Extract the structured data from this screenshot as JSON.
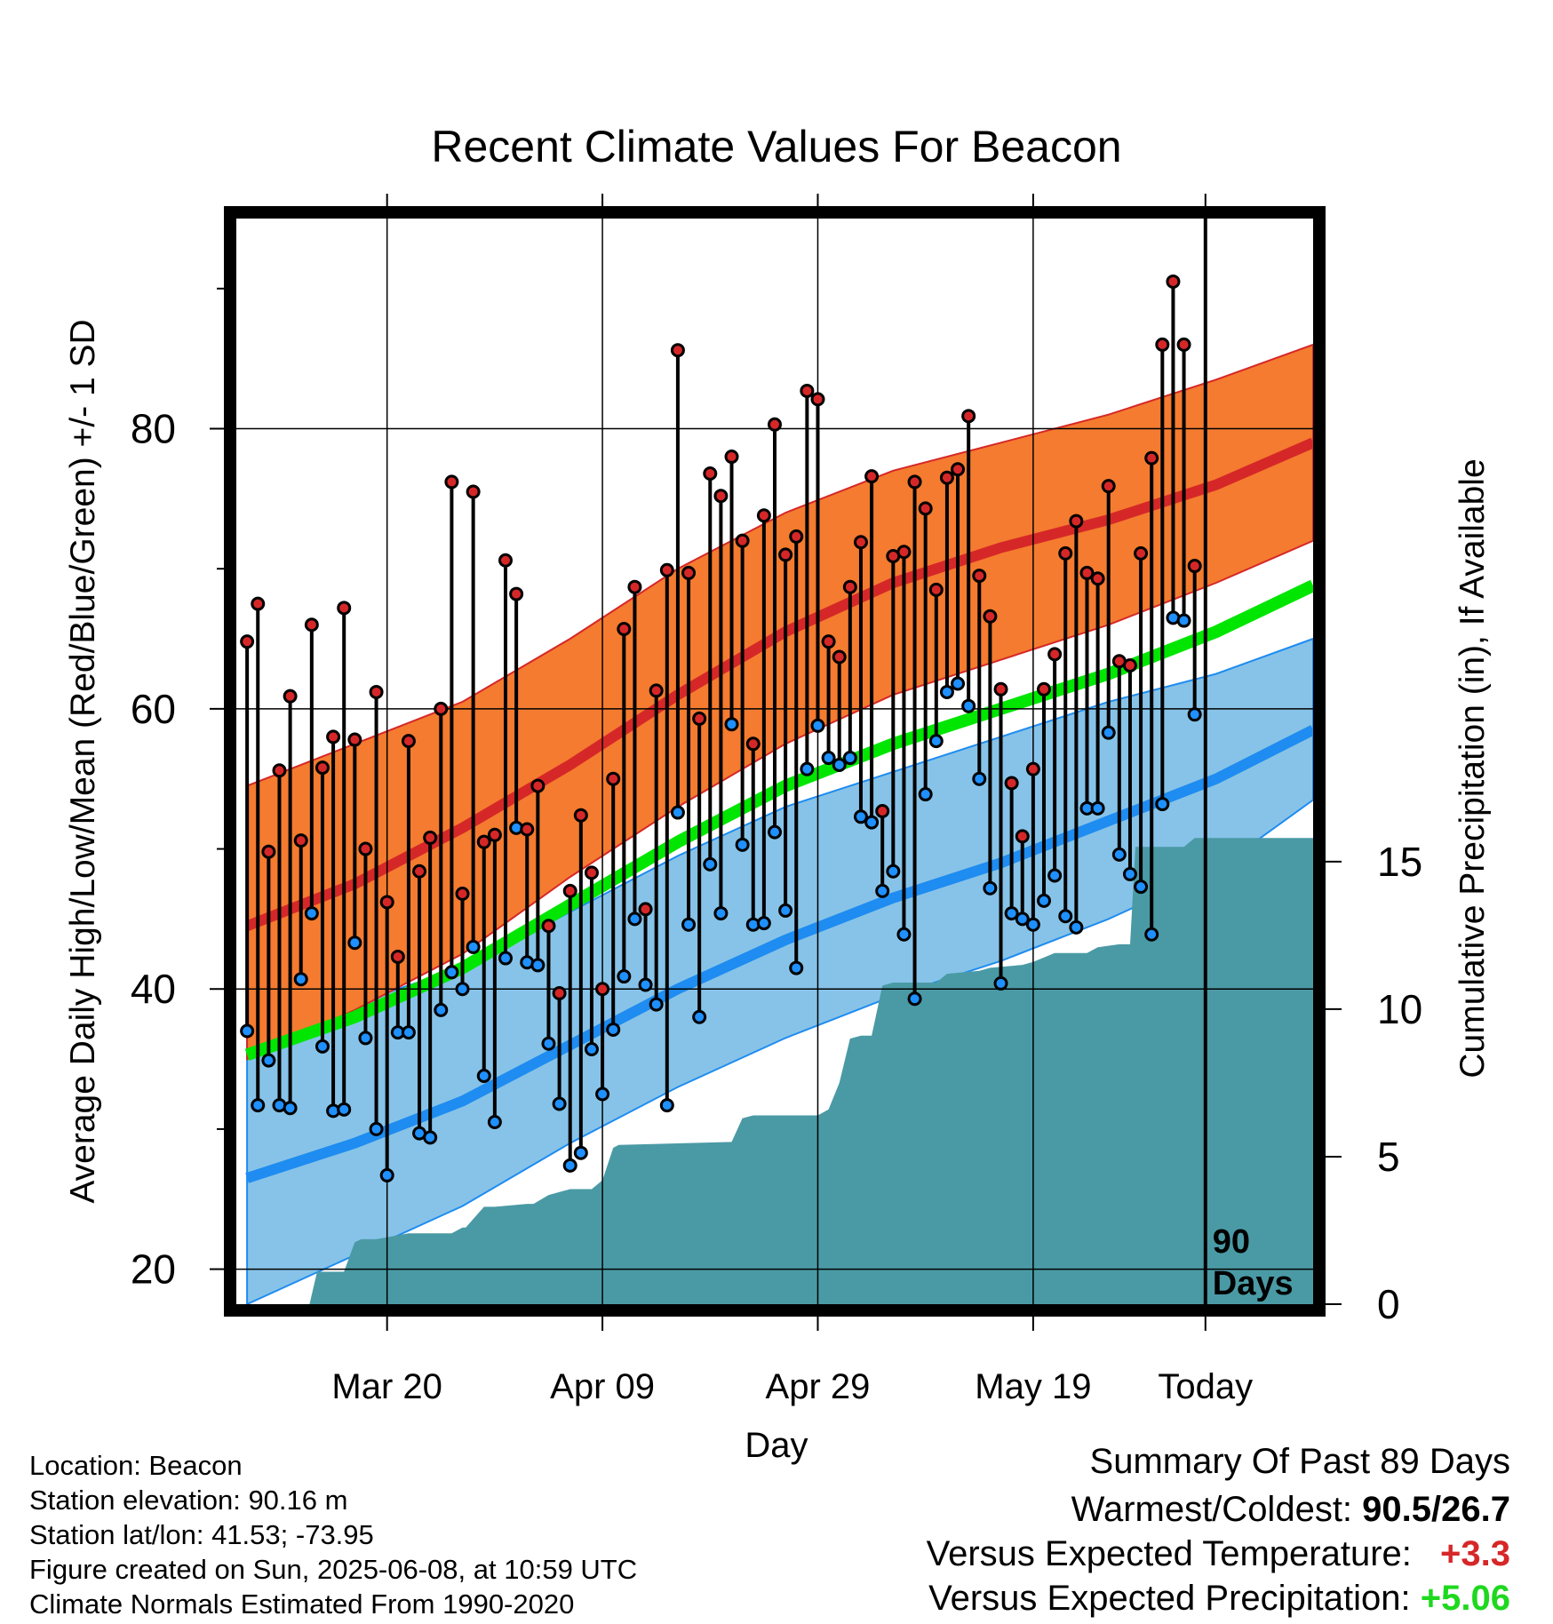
{
  "title": "Recent Climate Values For Beacon",
  "chart_data": {
    "type": "line",
    "title": "Recent Climate Values For Beacon",
    "xlabel": "Day",
    "ylabel": "Average Daily High/Low/Mean (Red/Blue/Green) +/- 1 SD",
    "y2label": "Cumulative Precipitation (in), If Available",
    "x_ticks": [
      "Mar 20",
      "Apr 09",
      "Apr 29",
      "May 19",
      "Today"
    ],
    "y_ticks": [
      20,
      40,
      60,
      80
    ],
    "y2_ticks": [
      0,
      5,
      10,
      15
    ],
    "ylim": [
      17.5,
      95
    ],
    "y2lim": [
      0,
      36.8
    ],
    "xlim": [
      -1,
      99
    ],
    "today_index": 89,
    "today_label": "90 Days",
    "normals": {
      "x": [
        0,
        10,
        20,
        30,
        40,
        50,
        60,
        70,
        80,
        90,
        99
      ],
      "high_mean": [
        44.5,
        47.5,
        51.5,
        56,
        61,
        65.5,
        69,
        71.5,
        73.5,
        76,
        79
      ],
      "high_sd_upper": [
        54.5,
        57.5,
        60.5,
        65,
        70,
        74,
        77,
        79,
        81,
        83.5,
        86
      ],
      "high_sd_lower": [
        35,
        38.5,
        42.5,
        48,
        53,
        57.5,
        61,
        63.5,
        66,
        69,
        72
      ],
      "avg_mean": [
        35.3,
        38,
        41.5,
        46,
        50.5,
        54.5,
        57.5,
        60,
        62.5,
        65.5,
        68.8
      ],
      "low_mean": [
        26.5,
        29,
        32,
        36,
        40,
        43.5,
        46.5,
        49,
        52,
        55,
        58.5
      ],
      "low_sd_upper": [
        37,
        39,
        41.5,
        45.5,
        49.5,
        53,
        55.5,
        58,
        60.5,
        62.5,
        65
      ],
      "low_sd_lower": [
        17.5,
        21,
        24.5,
        29,
        33,
        36.5,
        39.5,
        42,
        45,
        48.5,
        53.5
      ]
    },
    "series": [
      {
        "name": "High",
        "color": "#d62728",
        "values": [
          64.8,
          67.5,
          49.8,
          55.6,
          60.9,
          50.6,
          66,
          55.8,
          58,
          67.2,
          57.8,
          50,
          61.2,
          46.2,
          42.3,
          57.7,
          48.4,
          50.8,
          60,
          76.2,
          46.8,
          75.5,
          50.5,
          51,
          70.6,
          68.2,
          51.4,
          54.5,
          44.5,
          39.7,
          47,
          52.4,
          48.3,
          40,
          55,
          65.7,
          68.7,
          45.7,
          61.3,
          69.9,
          85.6,
          69.7,
          59.3,
          76.8,
          75.2,
          78,
          72,
          57.5,
          73.8,
          80.3,
          71,
          72.3,
          82.7,
          82.1,
          64.8,
          63.7,
          68.7,
          71.9,
          76.6,
          52.7,
          70.9,
          71.2,
          76.2,
          74.3,
          68.5,
          76.5,
          77.1,
          80.9,
          69.5,
          66.6,
          61.4,
          54.7,
          50.9,
          55.7,
          61.4,
          63.9,
          71.1,
          73.4,
          69.7,
          69.3,
          75.9,
          63.4,
          63.1,
          71.1,
          77.9,
          86,
          90.5,
          86,
          70.2
        ]
      },
      {
        "name": "Low",
        "color": "#1e90ff",
        "values": [
          37,
          31.7,
          34.9,
          31.7,
          31.5,
          40.7,
          45.4,
          35.9,
          31.3,
          31.4,
          43.3,
          36.5,
          30,
          26.7,
          36.9,
          36.9,
          29.7,
          29.4,
          38.5,
          41.2,
          40,
          43,
          33.8,
          30.5,
          42.2,
          51.5,
          41.9,
          41.7,
          36.1,
          31.8,
          27.4,
          28.3,
          35.7,
          32.5,
          37.1,
          40.9,
          45,
          40.3,
          38.9,
          31.7,
          52.6,
          44.6,
          38,
          48.9,
          45.4,
          58.9,
          50.3,
          44.6,
          44.7,
          51.2,
          45.6,
          41.5,
          55.7,
          58.8,
          56.5,
          56,
          56.5,
          52.3,
          51.9,
          47,
          48.4,
          43.9,
          39.3,
          53.9,
          57.7,
          61.2,
          61.8,
          60.2,
          55,
          47.2,
          40.4,
          45.4,
          45,
          44.6,
          46.3,
          48.1,
          45.2,
          44.4,
          52.9,
          52.9,
          58.3,
          49.6,
          48.2,
          47.3,
          43.9,
          53.2,
          66.5,
          66.3,
          59.6
        ]
      }
    ],
    "precip": {
      "x": [
        0,
        5.8,
        6.5,
        9,
        10,
        10.6,
        12,
        15,
        19,
        20,
        20.3,
        22,
        23,
        26,
        26.6,
        28,
        30,
        32,
        33,
        34,
        34.5,
        45,
        46,
        47,
        50,
        53,
        54,
        55,
        56,
        57,
        58,
        59,
        60,
        64,
        65,
        68,
        69,
        72,
        73,
        75,
        78,
        79,
        81,
        82,
        82.5,
        85,
        87,
        88,
        91,
        99
      ],
      "values": [
        0,
        0,
        1.1,
        1.1,
        2.1,
        2.2,
        2.2,
        2.4,
        2.4,
        2.6,
        2.6,
        3.3,
        3.3,
        3.4,
        3.4,
        3.7,
        3.9,
        3.9,
        4.2,
        5.3,
        5.4,
        5.5,
        6.3,
        6.4,
        6.4,
        6.4,
        6.6,
        7.5,
        9,
        9.1,
        9.1,
        10.8,
        10.9,
        10.9,
        11.2,
        11.3,
        11.4,
        11.5,
        11.6,
        11.9,
        11.9,
        12.1,
        12.2,
        12.2,
        15.5,
        15.5,
        15.5,
        15.8,
        15.8,
        15.8
      ]
    }
  },
  "info": {
    "location": "Location: Beacon",
    "elevation": "Station elevation: 90.16 m",
    "latlon": "Station lat/lon: 41.53; -73.95",
    "created": "Figure created on Sun, 2025-06-08, at 10:59 UTC",
    "normals": "Climate Normals Estimated From 1990-2020"
  },
  "summary": {
    "heading": "Summary Of Past 89 Days",
    "warm_cold_label": "Warmest/Coldest:",
    "warm_cold_value": "90.5/26.7",
    "temp_label": "Versus Expected Temperature:",
    "temp_value": "+3.3",
    "precip_label": "Versus Expected Precipitation:",
    "precip_value": "+5.06"
  },
  "colors": {
    "high_band": "#f47b2f",
    "high_line": "#d62728",
    "avg_line": "#00e600",
    "low_band": "#87c3e8",
    "low_line": "#1e8cf0",
    "precip_fill": "#4a9aa5",
    "frame": "#000000"
  }
}
